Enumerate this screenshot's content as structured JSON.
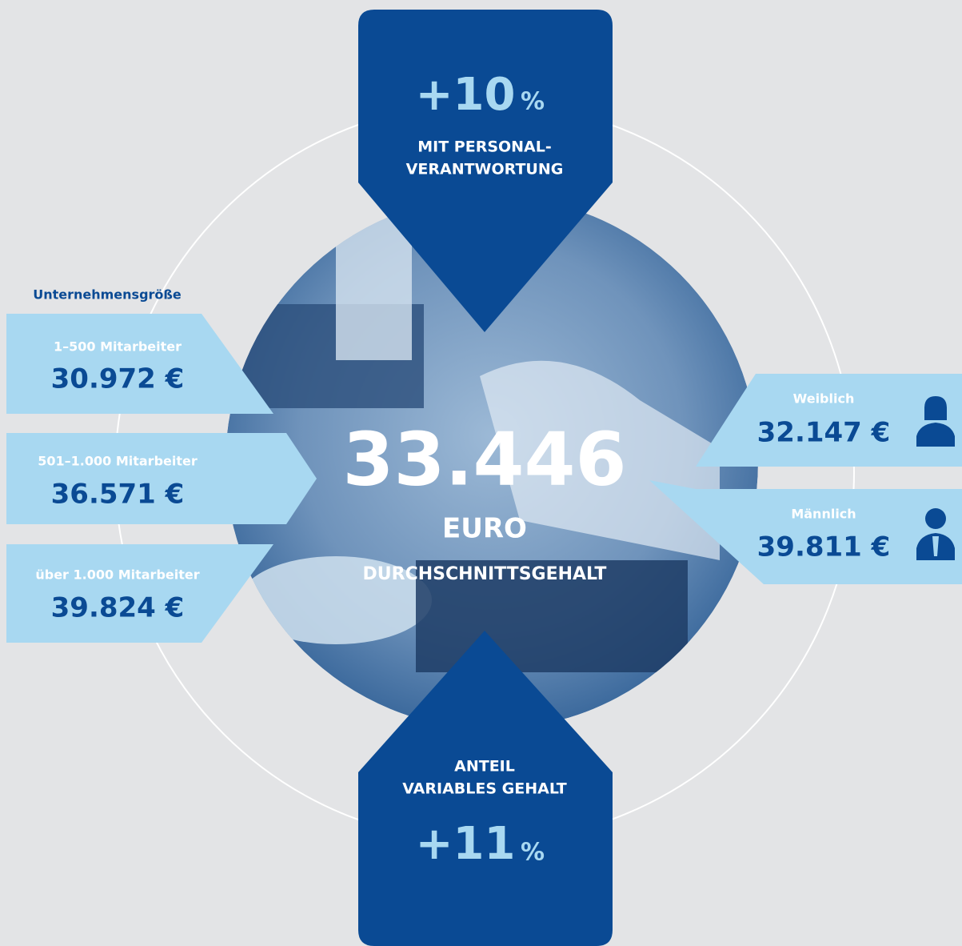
{
  "top": {
    "value": "+10",
    "unit": "%",
    "lines": [
      "MIT PERSONAL-",
      "VERANTWORTUNG"
    ]
  },
  "center": {
    "value": "33.446",
    "unit": "EURO",
    "label": "DURCHSCHNITTSGEHALT"
  },
  "company_size": {
    "title": "Unternehmensgröße",
    "items": [
      {
        "label": "1–500 Mitarbeiter",
        "value": "30.972 €"
      },
      {
        "label": "501–1.000 Mitarbeiter",
        "value": "36.571 €"
      },
      {
        "label": "über 1.000 Mitarbeiter",
        "value": "39.824 €"
      }
    ]
  },
  "gender": {
    "items": [
      {
        "label": "Weiblich",
        "value": "32.147 €"
      },
      {
        "label": "Männlich",
        "value": "39.811 €"
      }
    ]
  },
  "bottom": {
    "lines": [
      "ANTEIL",
      "VARIABLES GEHALT"
    ],
    "value": "+11",
    "unit": "%"
  }
}
